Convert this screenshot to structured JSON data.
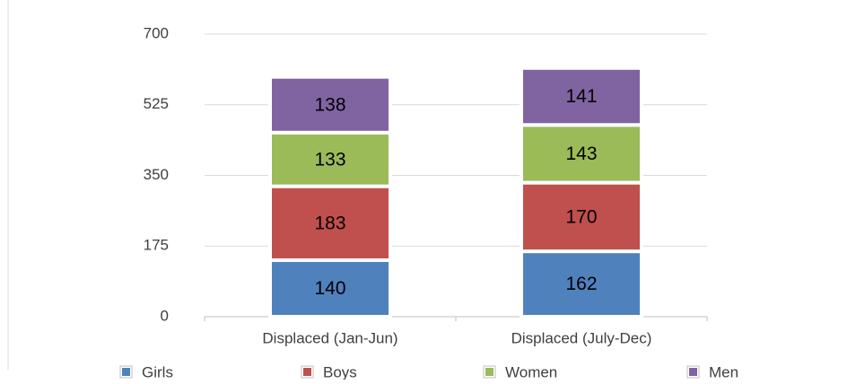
{
  "chart_data": {
    "type": "stacked_bar",
    "categories": [
      "Displaced (Jan-Jun)",
      "Displaced (July-Dec)"
    ],
    "series": [
      {
        "name": "Girls",
        "color": "#4f81bd",
        "values": [
          140,
          162
        ]
      },
      {
        "name": "Boys",
        "color": "#c0504d",
        "values": [
          183,
          170
        ]
      },
      {
        "name": "Women",
        "color": "#9bbb59",
        "values": [
          133,
          143
        ]
      },
      {
        "name": "Men",
        "color": "#8064a2",
        "values": [
          138,
          141
        ]
      }
    ],
    "ylim": [
      0,
      700
    ],
    "yticks": [
      0,
      175,
      350,
      525,
      700
    ],
    "grid": true,
    "legend": "bottom"
  }
}
